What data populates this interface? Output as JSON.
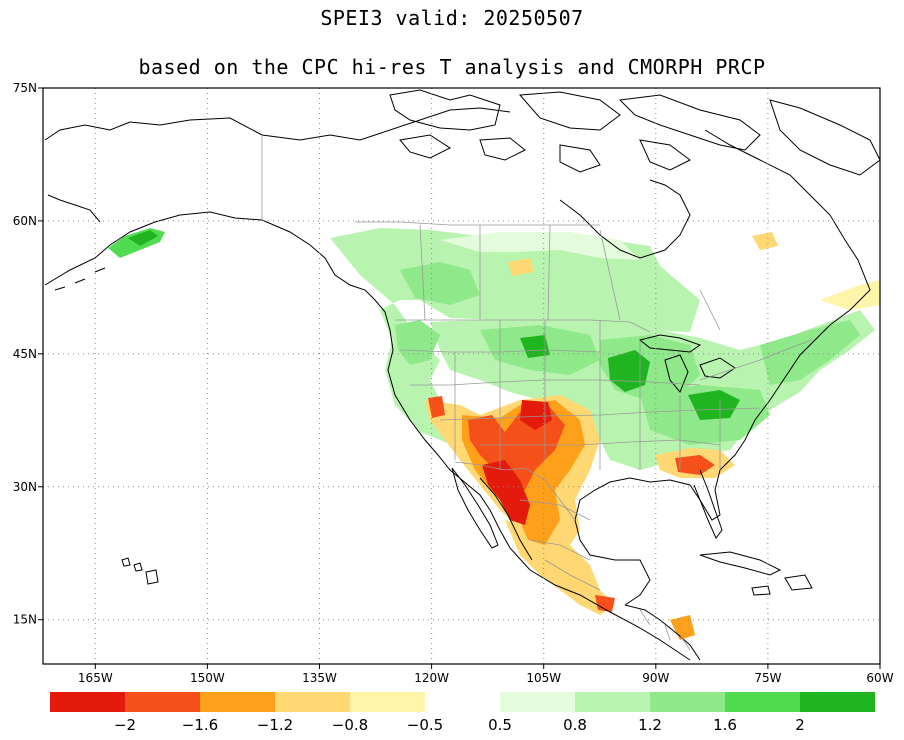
{
  "title_line1": "SPEI3  valid: 20250507",
  "title_line2": "based on the CPC hi-res T analysis and CMORPH PRCP",
  "map": {
    "lon_range": [
      -172,
      -60
    ],
    "lat_range": [
      10,
      75
    ],
    "lat_ticks": [
      {
        "value": 75,
        "label": "75N"
      },
      {
        "value": 60,
        "label": "60N"
      },
      {
        "value": 45,
        "label": "45N"
      },
      {
        "value": 30,
        "label": "30N"
      },
      {
        "value": 15,
        "label": "15N"
      }
    ],
    "lon_ticks": [
      {
        "value": -165,
        "label": "165W"
      },
      {
        "value": -150,
        "label": "150W"
      },
      {
        "value": -135,
        "label": "135W"
      },
      {
        "value": -120,
        "label": "120W"
      },
      {
        "value": -105,
        "label": "105W"
      },
      {
        "value": -90,
        "label": "90W"
      },
      {
        "value": -75,
        "label": "75W"
      },
      {
        "value": -60,
        "label": "60W"
      }
    ],
    "grid": "dotted"
  },
  "colorbar": {
    "boxes": [
      {
        "color": "#e31a0c"
      },
      {
        "color": "#f5501a"
      },
      {
        "color": "#ffa01a"
      },
      {
        "color": "#ffd873"
      },
      {
        "color": "#fff4a8"
      },
      {
        "color": "#ffffff"
      },
      {
        "color": "#e4fbdc"
      },
      {
        "color": "#b8f4b0"
      },
      {
        "color": "#8fe88a"
      },
      {
        "color": "#50dc50"
      },
      {
        "color": "#20b420"
      }
    ],
    "labels": [
      "−2",
      "−1.6",
      "−1.2",
      "−0.8",
      "−0.5",
      "0.5",
      "0.8",
      "1.2",
      "1.6",
      "2"
    ]
  },
  "colors": {
    "strong_wet": "#20b420",
    "wet": "#50dc50",
    "moderate_wet": "#8fe88a",
    "light_wet": "#b8f4b0",
    "very_light_wet": "#e4fbdc",
    "light_dry": "#fff4a8",
    "moderate_dry": "#ffd873",
    "dry": "#ffa01a",
    "severe_dry": "#f5501a",
    "extreme_dry": "#e31a0c"
  }
}
